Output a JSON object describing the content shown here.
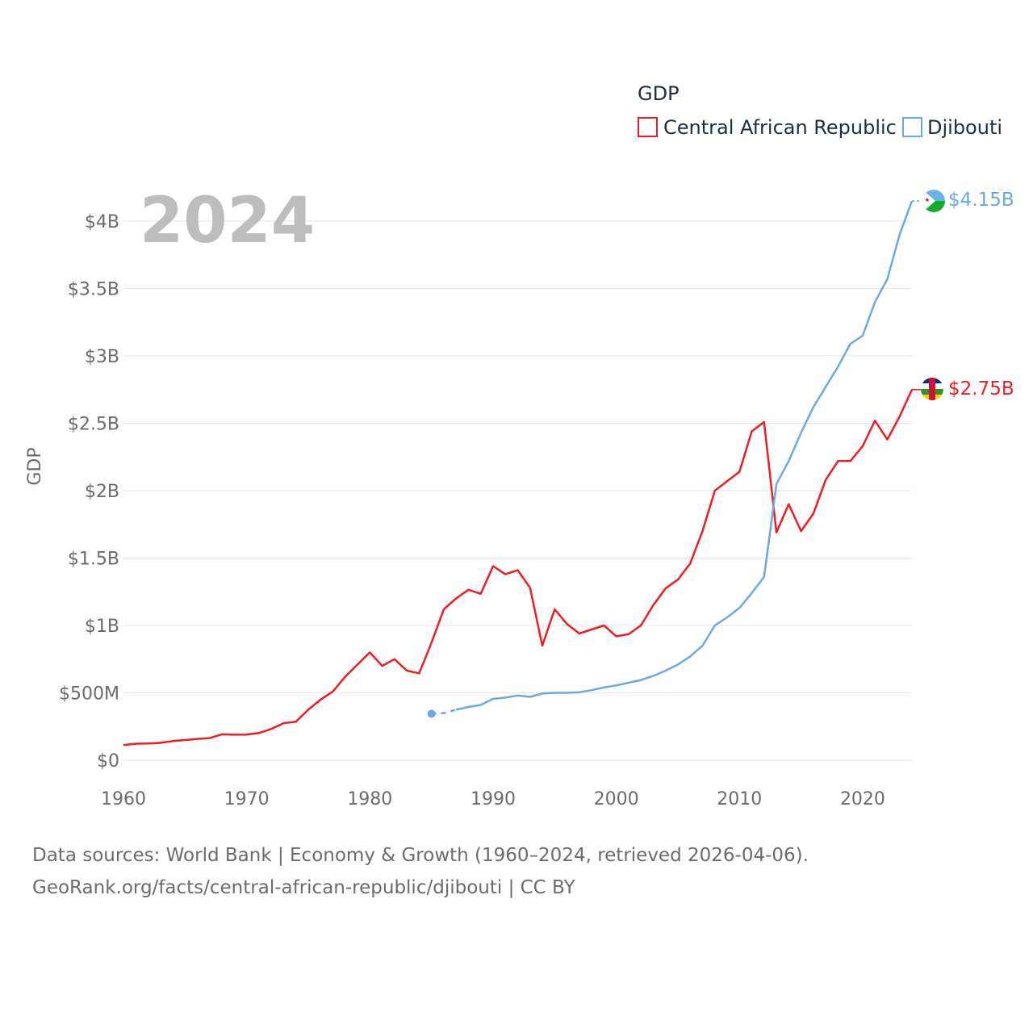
{
  "chart_data": {
    "type": "line",
    "title": "",
    "year_label": "2024",
    "xlabel": "",
    "ylabel": "GDP",
    "xlim": [
      1960,
      2024
    ],
    "ylim": [
      0,
      4150000000
    ],
    "x_ticks": [
      {
        "value": 1960,
        "label": "1960"
      },
      {
        "value": 1970,
        "label": "1970"
      },
      {
        "value": 1980,
        "label": "1980"
      },
      {
        "value": 1990,
        "label": "1990"
      },
      {
        "value": 2000,
        "label": "2000"
      },
      {
        "value": 2010,
        "label": "2010"
      },
      {
        "value": 2020,
        "label": "2020"
      }
    ],
    "y_ticks": [
      {
        "value": 0,
        "label": "$0"
      },
      {
        "value": 500000000,
        "label": "$500M"
      },
      {
        "value": 1000000000,
        "label": "$1B"
      },
      {
        "value": 1500000000,
        "label": "$1.5B"
      },
      {
        "value": 2000000000,
        "label": "$2B"
      },
      {
        "value": 2500000000,
        "label": "$2.5B"
      },
      {
        "value": 3000000000,
        "label": "$3B"
      },
      {
        "value": 3500000000,
        "label": "$3.5B"
      },
      {
        "value": 4000000000,
        "label": "$4B"
      }
    ],
    "legend": {
      "title": "GDP",
      "position": "top-right"
    },
    "series": [
      {
        "name": "Central African Republic",
        "color": "#ee1c25",
        "end_label": "$2.75B",
        "start_year": 1960,
        "values": [
          112000000,
          123000000,
          124000000,
          129000000,
          142000000,
          150000000,
          158000000,
          164000000,
          192000000,
          189000000,
          190000000,
          202000000,
          232000000,
          275000000,
          286000000,
          375000000,
          450000000,
          510000000,
          620000000,
          710000000,
          800000000,
          700000000,
          750000000,
          665000000,
          645000000,
          870000000,
          1120000000,
          1200000000,
          1265000000,
          1235000000,
          1440000000,
          1380000000,
          1410000000,
          1280000000,
          850000000,
          1120000000,
          1010000000,
          940000000,
          970000000,
          1000000000,
          920000000,
          935000000,
          1000000000,
          1150000000,
          1275000000,
          1340000000,
          1460000000,
          1700000000,
          2000000000,
          2070000000,
          2140000000,
          2440000000,
          2510000000,
          1690000000,
          1900000000,
          1700000000,
          1830000000,
          2080000000,
          2220000000,
          2220000000,
          2330000000,
          2520000000,
          2380000000,
          2550000000,
          2750000000
        ]
      },
      {
        "name": "Djibouti",
        "color": "#6aaae4",
        "end_label": "$4.15B",
        "start_year": 1985,
        "values": [
          345000000,
          350000000,
          375000000,
          395000000,
          410000000,
          455000000,
          465000000,
          480000000,
          470000000,
          495000000,
          500000000,
          500000000,
          505000000,
          520000000,
          540000000,
          555000000,
          575000000,
          595000000,
          625000000,
          665000000,
          710000000,
          770000000,
          850000000,
          1000000000,
          1060000000,
          1130000000,
          1240000000,
          1360000000,
          2050000000,
          2220000000,
          2430000000,
          2620000000,
          2770000000,
          2920000000,
          3090000000,
          3150000000,
          3400000000,
          3570000000,
          3900000000,
          4150000000
        ]
      }
    ]
  },
  "source_line1": "Data sources: World Bank | Economy & Growth (1960–2024, retrieved 2026-04-06).",
  "source_line2": "GeoRank.org/facts/central-african-republic/djibouti | CC BY"
}
